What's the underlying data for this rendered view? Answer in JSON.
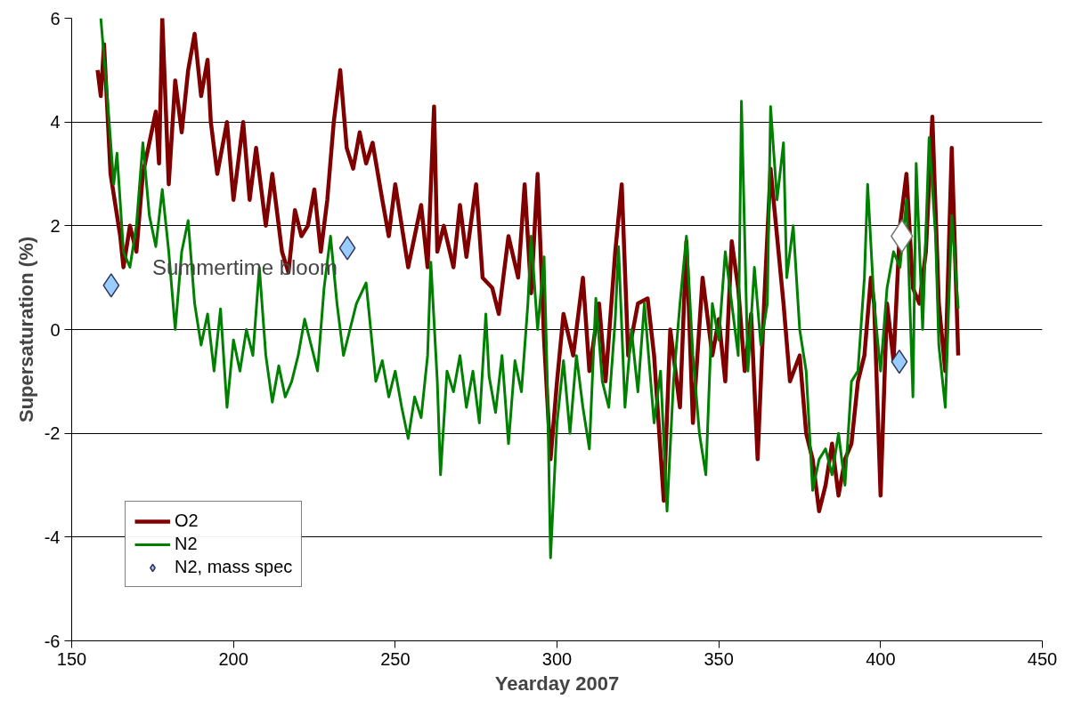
{
  "chart_data": {
    "type": "line",
    "xlabel": "Yearday 2007",
    "ylabel": "Supersaturation (%)",
    "xlim": [
      150,
      450
    ],
    "xticks": [
      150,
      200,
      250,
      300,
      350,
      400,
      450
    ],
    "ylim": [
      -6,
      6
    ],
    "yticks": [
      -6,
      -4,
      -2,
      0,
      2,
      4,
      6
    ],
    "grid": "y",
    "legend": "bottom left",
    "annotations": [
      "Summertime bloom"
    ],
    "series": [
      {
        "name": "O2",
        "color": "#800000",
        "x": [
          158,
          159,
          160,
          162,
          164,
          165,
          166,
          168,
          170,
          172,
          174,
          176,
          177,
          178,
          180,
          182,
          184,
          186,
          188,
          190,
          192,
          193,
          195,
          198,
          200,
          203,
          205,
          207,
          210,
          212,
          215,
          217,
          219,
          221,
          223,
          225,
          227,
          229,
          231,
          233,
          235,
          237,
          239,
          241,
          243,
          246,
          248,
          250,
          252,
          254,
          256,
          258,
          260,
          262,
          263,
          265,
          268,
          270,
          272,
          275,
          277,
          280,
          282,
          285,
          288,
          290,
          292,
          294,
          296,
          298,
          300,
          302,
          305,
          308,
          310,
          313,
          315,
          318,
          320,
          322,
          325,
          328,
          330,
          333,
          335,
          338,
          340,
          342,
          345,
          348,
          350,
          352,
          354,
          356,
          358,
          360,
          362,
          364,
          366,
          368,
          370,
          372,
          375,
          377,
          379,
          381,
          383,
          385,
          387,
          389,
          391,
          393,
          395,
          397,
          398,
          400,
          402,
          404,
          406,
          408,
          410,
          412,
          414,
          416,
          418,
          420,
          422,
          424
        ],
        "values": [
          5.0,
          4.5,
          5.5,
          3.0,
          2.2,
          1.8,
          1.2,
          2.0,
          1.5,
          3.0,
          3.6,
          4.2,
          3.2,
          6.0,
          2.8,
          4.8,
          3.8,
          5.0,
          5.7,
          4.5,
          5.2,
          4.0,
          3.0,
          4.0,
          2.5,
          4.0,
          2.5,
          3.5,
          2.0,
          3.0,
          1.5,
          1.1,
          2.3,
          1.8,
          2.0,
          2.7,
          1.5,
          2.5,
          4.0,
          5.0,
          3.5,
          3.1,
          3.8,
          3.2,
          3.6,
          2.5,
          1.8,
          2.8,
          2.0,
          1.2,
          1.8,
          2.4,
          1.2,
          4.3,
          1.5,
          2.0,
          1.2,
          2.4,
          1.4,
          2.8,
          1.0,
          0.8,
          0.3,
          1.8,
          1.0,
          2.8,
          0.7,
          3.0,
          -0.2,
          -2.5,
          -1.0,
          0.3,
          -0.5,
          1.0,
          -0.8,
          0.5,
          -1.0,
          1.5,
          2.8,
          -0.5,
          0.5,
          0.6,
          -0.5,
          -3.3,
          0.0,
          -1.5,
          1.7,
          -1.8,
          1.0,
          -0.5,
          0.2,
          -1.0,
          1.7,
          0.8,
          -0.8,
          0.3,
          -2.5,
          0.5,
          3.1,
          1.8,
          0.5,
          -1.0,
          -0.5,
          -2.0,
          -2.5,
          -3.5,
          -3.0,
          -2.2,
          -3.2,
          -2.5,
          -2.2,
          -1.0,
          -0.5,
          1.0,
          0.5,
          -3.2,
          0.5,
          -0.6,
          2.0,
          3.0,
          0.8,
          0.5,
          1.5,
          4.1,
          0.5,
          -0.8,
          3.5,
          -0.5
        ]
      },
      {
        "name": "N2",
        "color": "#008000",
        "x": [
          159,
          161,
          163,
          164,
          166,
          168,
          170,
          172,
          174,
          176,
          178,
          180,
          182,
          184,
          186,
          188,
          190,
          192,
          194,
          196,
          198,
          200,
          202,
          204,
          206,
          208,
          210,
          212,
          214,
          216,
          218,
          220,
          222,
          224,
          226,
          228,
          230,
          232,
          234,
          236,
          238,
          241,
          244,
          246,
          248,
          250,
          252,
          254,
          256,
          258,
          260,
          261,
          263,
          264,
          266,
          268,
          270,
          272,
          274,
          276,
          278,
          279,
          281,
          283,
          285,
          287,
          289,
          291,
          292,
          294,
          296,
          297,
          298,
          300,
          302,
          304,
          306,
          308,
          310,
          312,
          314,
          316,
          318,
          319,
          321,
          323,
          325,
          327,
          330,
          332,
          334,
          336,
          338,
          340,
          342,
          344,
          346,
          348,
          350,
          352,
          354,
          356,
          357,
          359,
          361,
          363,
          365,
          366,
          368,
          370,
          371,
          373,
          375,
          377,
          379,
          381,
          383,
          385,
          387,
          389,
          391,
          393,
          395,
          396,
          398,
          400,
          402,
          404,
          406,
          408,
          410,
          411,
          413,
          415,
          417,
          418,
          420,
          422,
          424
        ],
        "values": [
          6.0,
          4.5,
          2.8,
          3.4,
          1.5,
          1.2,
          2.0,
          3.6,
          2.2,
          1.6,
          2.7,
          1.5,
          0.0,
          1.5,
          2.1,
          0.5,
          -0.3,
          0.3,
          -0.8,
          0.4,
          -1.5,
          -0.2,
          -0.8,
          0.0,
          -0.5,
          1.2,
          -0.5,
          -1.4,
          -0.7,
          -1.3,
          -1.0,
          -0.5,
          0.2,
          -0.3,
          -0.8,
          0.8,
          1.8,
          0.5,
          -0.5,
          0.0,
          0.5,
          0.9,
          -1.0,
          -0.6,
          -1.3,
          -0.8,
          -1.5,
          -2.1,
          -1.3,
          -1.7,
          -0.5,
          1.3,
          -1.0,
          -2.8,
          -0.8,
          -1.2,
          -0.5,
          -1.5,
          -0.8,
          -1.8,
          0.3,
          -0.9,
          -1.6,
          -0.5,
          -2.2,
          -0.6,
          -1.2,
          0.5,
          1.8,
          0.0,
          1.4,
          -1.0,
          -4.4,
          -1.8,
          -0.6,
          -2.0,
          -0.5,
          -1.5,
          -2.3,
          0.6,
          -1.0,
          -1.5,
          0.2,
          1.6,
          -1.5,
          0.0,
          -1.2,
          0.5,
          -1.8,
          -0.8,
          -3.5,
          -1.0,
          0.5,
          1.8,
          -0.5,
          -2.0,
          -2.8,
          0.5,
          -0.2,
          1.5,
          0.5,
          -0.5,
          4.4,
          -0.8,
          1.2,
          -0.3,
          0.5,
          4.3,
          2.5,
          3.6,
          1.0,
          2.0,
          0.0,
          -0.8,
          -3.1,
          -2.5,
          -2.3,
          -2.8,
          -2.0,
          -3.0,
          -1.0,
          -0.8,
          1.0,
          2.8,
          0.5,
          -0.8,
          0.8,
          1.5,
          1.2,
          2.5,
          -1.3,
          3.2,
          0.0,
          3.7,
          1.8,
          -0.3,
          -1.5,
          2.2,
          0.4
        ]
      },
      {
        "name": "N2, mass spec",
        "type": "scatter",
        "marker": "diamond",
        "color": "#99ccff",
        "x": [
          162.2,
          235.2,
          405.8
        ],
        "values": [
          0.85,
          1.57,
          -0.62
        ]
      },
      {
        "type": "scatter",
        "marker": "diamond",
        "color": "#ffffff",
        "x": [
          406.6
        ],
        "values": [
          1.8
        ]
      }
    ]
  }
}
